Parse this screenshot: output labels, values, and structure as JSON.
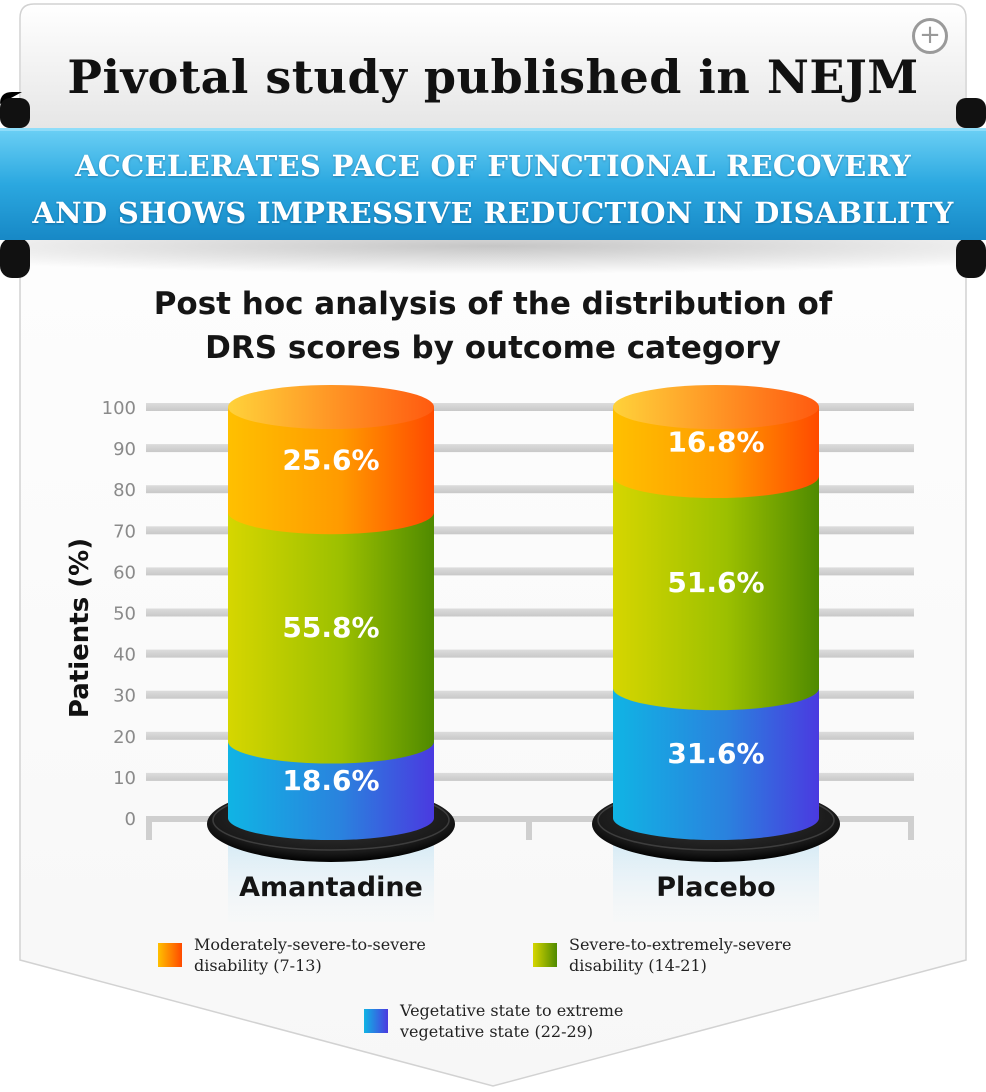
{
  "header": {
    "title": "Pivotal study published in NEJM",
    "banner_line1": "ACCELERATES PACE OF FUNCTIONAL RECOVERY",
    "banner_line2": "AND SHOWS IMPRESSIVE REDUCTION IN DISABILITY",
    "zoom_icon": "plus-circle-icon"
  },
  "colors": {
    "banner": "#2ba8e0",
    "moderate": "#ff7a00",
    "severe": "#8dba00",
    "vegetative": "#3a5be0"
  },
  "chart_data": {
    "type": "bar",
    "stacked": true,
    "style": "3d-cylinder",
    "title_line1": "Post hoc analysis of the distribution of",
    "title_line2": "DRS scores by outcome category",
    "ylabel": "Patients (%)",
    "ylim": [
      0,
      100
    ],
    "yticks": [
      0,
      10,
      20,
      30,
      40,
      50,
      60,
      70,
      80,
      90,
      100
    ],
    "grid": true,
    "categories": [
      "Amantadine",
      "Placebo"
    ],
    "series": [
      {
        "name": "Vegetative state to extreme vegetative state (22-29)",
        "values": [
          18.6,
          31.6
        ],
        "labels": [
          "18.6%",
          "31.6%"
        ]
      },
      {
        "name": "Severe-to-extremely-severe disability (14-21)",
        "values": [
          55.8,
          51.6
        ],
        "labels": [
          "55.8%",
          "51.6%"
        ]
      },
      {
        "name": "Moderately-severe-to-severe disability (7-13)",
        "values": [
          25.6,
          16.8
        ],
        "labels": [
          "25.6%",
          "16.8%"
        ]
      }
    ],
    "legend_position": "bottom"
  }
}
